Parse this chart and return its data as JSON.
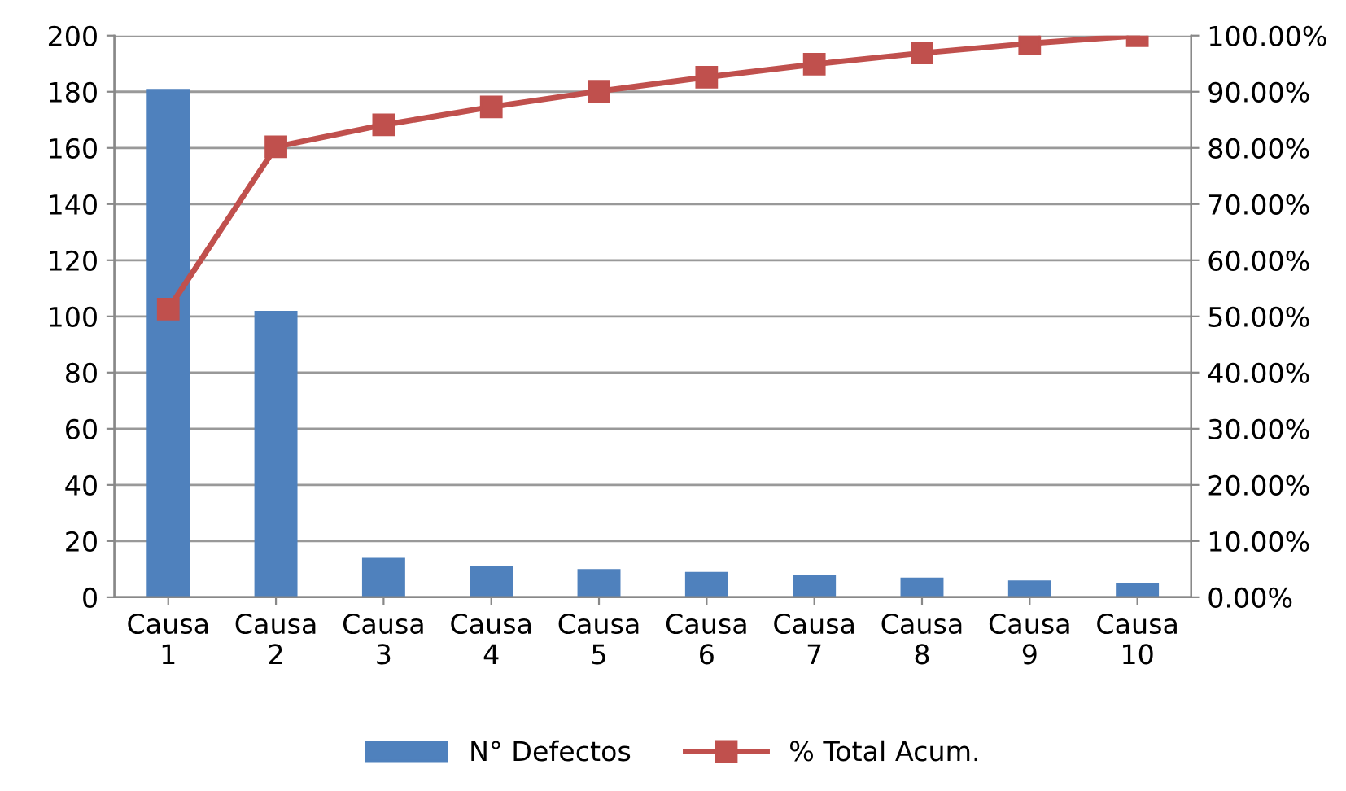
{
  "chart_data": {
    "type": "bar",
    "categories": [
      "Causa 1",
      "Causa 2",
      "Causa 3",
      "Causa 4",
      "Causa 5",
      "Causa 6",
      "Causa 7",
      "Causa 8",
      "Causa 9",
      "Causa 10"
    ],
    "series": [
      {
        "name": "N° Defectos",
        "color": "#4f81bd",
        "values": [
          181,
          102,
          14,
          11,
          10,
          9,
          8,
          7,
          6,
          5
        ]
      },
      {
        "name": "% Total Acum.",
        "type": "line",
        "axis": "y2",
        "color": "#c0504d",
        "marker": "square",
        "values": [
          51.3,
          80.2,
          84.1,
          87.3,
          90.1,
          92.6,
          94.9,
          96.9,
          98.6,
          100
        ]
      }
    ],
    "ylim": [
      0,
      200
    ],
    "yticks": [
      0,
      20,
      40,
      60,
      80,
      100,
      120,
      140,
      160,
      180,
      200
    ],
    "y2lim": [
      0,
      100
    ],
    "y2ticks": [
      {
        "value": 0,
        "label": "0.00%"
      },
      {
        "value": 10,
        "label": "10.00%"
      },
      {
        "value": 20,
        "label": "20.00%"
      },
      {
        "value": 30,
        "label": "30.00%"
      },
      {
        "value": 40,
        "label": "40.00%"
      },
      {
        "value": 50,
        "label": "50.00%"
      },
      {
        "value": 60,
        "label": "60.00%"
      },
      {
        "value": 70,
        "label": "70.00%"
      },
      {
        "value": 80,
        "label": "80.00%"
      },
      {
        "value": 90,
        "label": "90.00%"
      },
      {
        "value": 100,
        "label": "100.00%"
      }
    ],
    "grid": "y",
    "legend": "bottom"
  }
}
